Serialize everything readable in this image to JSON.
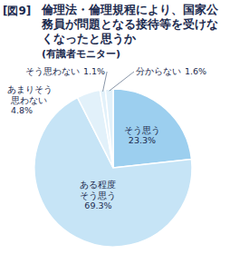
{
  "chart_data": {
    "type": "pie",
    "title": "倫理法・倫理規程により、国家公務員が問題となる接待等を受けなくなったと思うか",
    "subtitle": "(有識者モニター)",
    "annotations": [
      "[図9]"
    ],
    "categories": [
      "そう思う",
      "ある程度そう思う",
      "あまりそう思わない",
      "そう思わない",
      "分からない"
    ],
    "values": [
      23.3,
      69.3,
      4.8,
      1.1,
      1.6
    ],
    "value_labels": [
      "23.3%",
      "69.3%",
      "4.8%",
      "1.1%",
      "1.6%"
    ],
    "colors": [
      "#9ccfef",
      "#c6e4f6",
      "#e2f1fa",
      "#e2f1fa",
      "#e2f1fa"
    ],
    "data_labels": true
  }
}
